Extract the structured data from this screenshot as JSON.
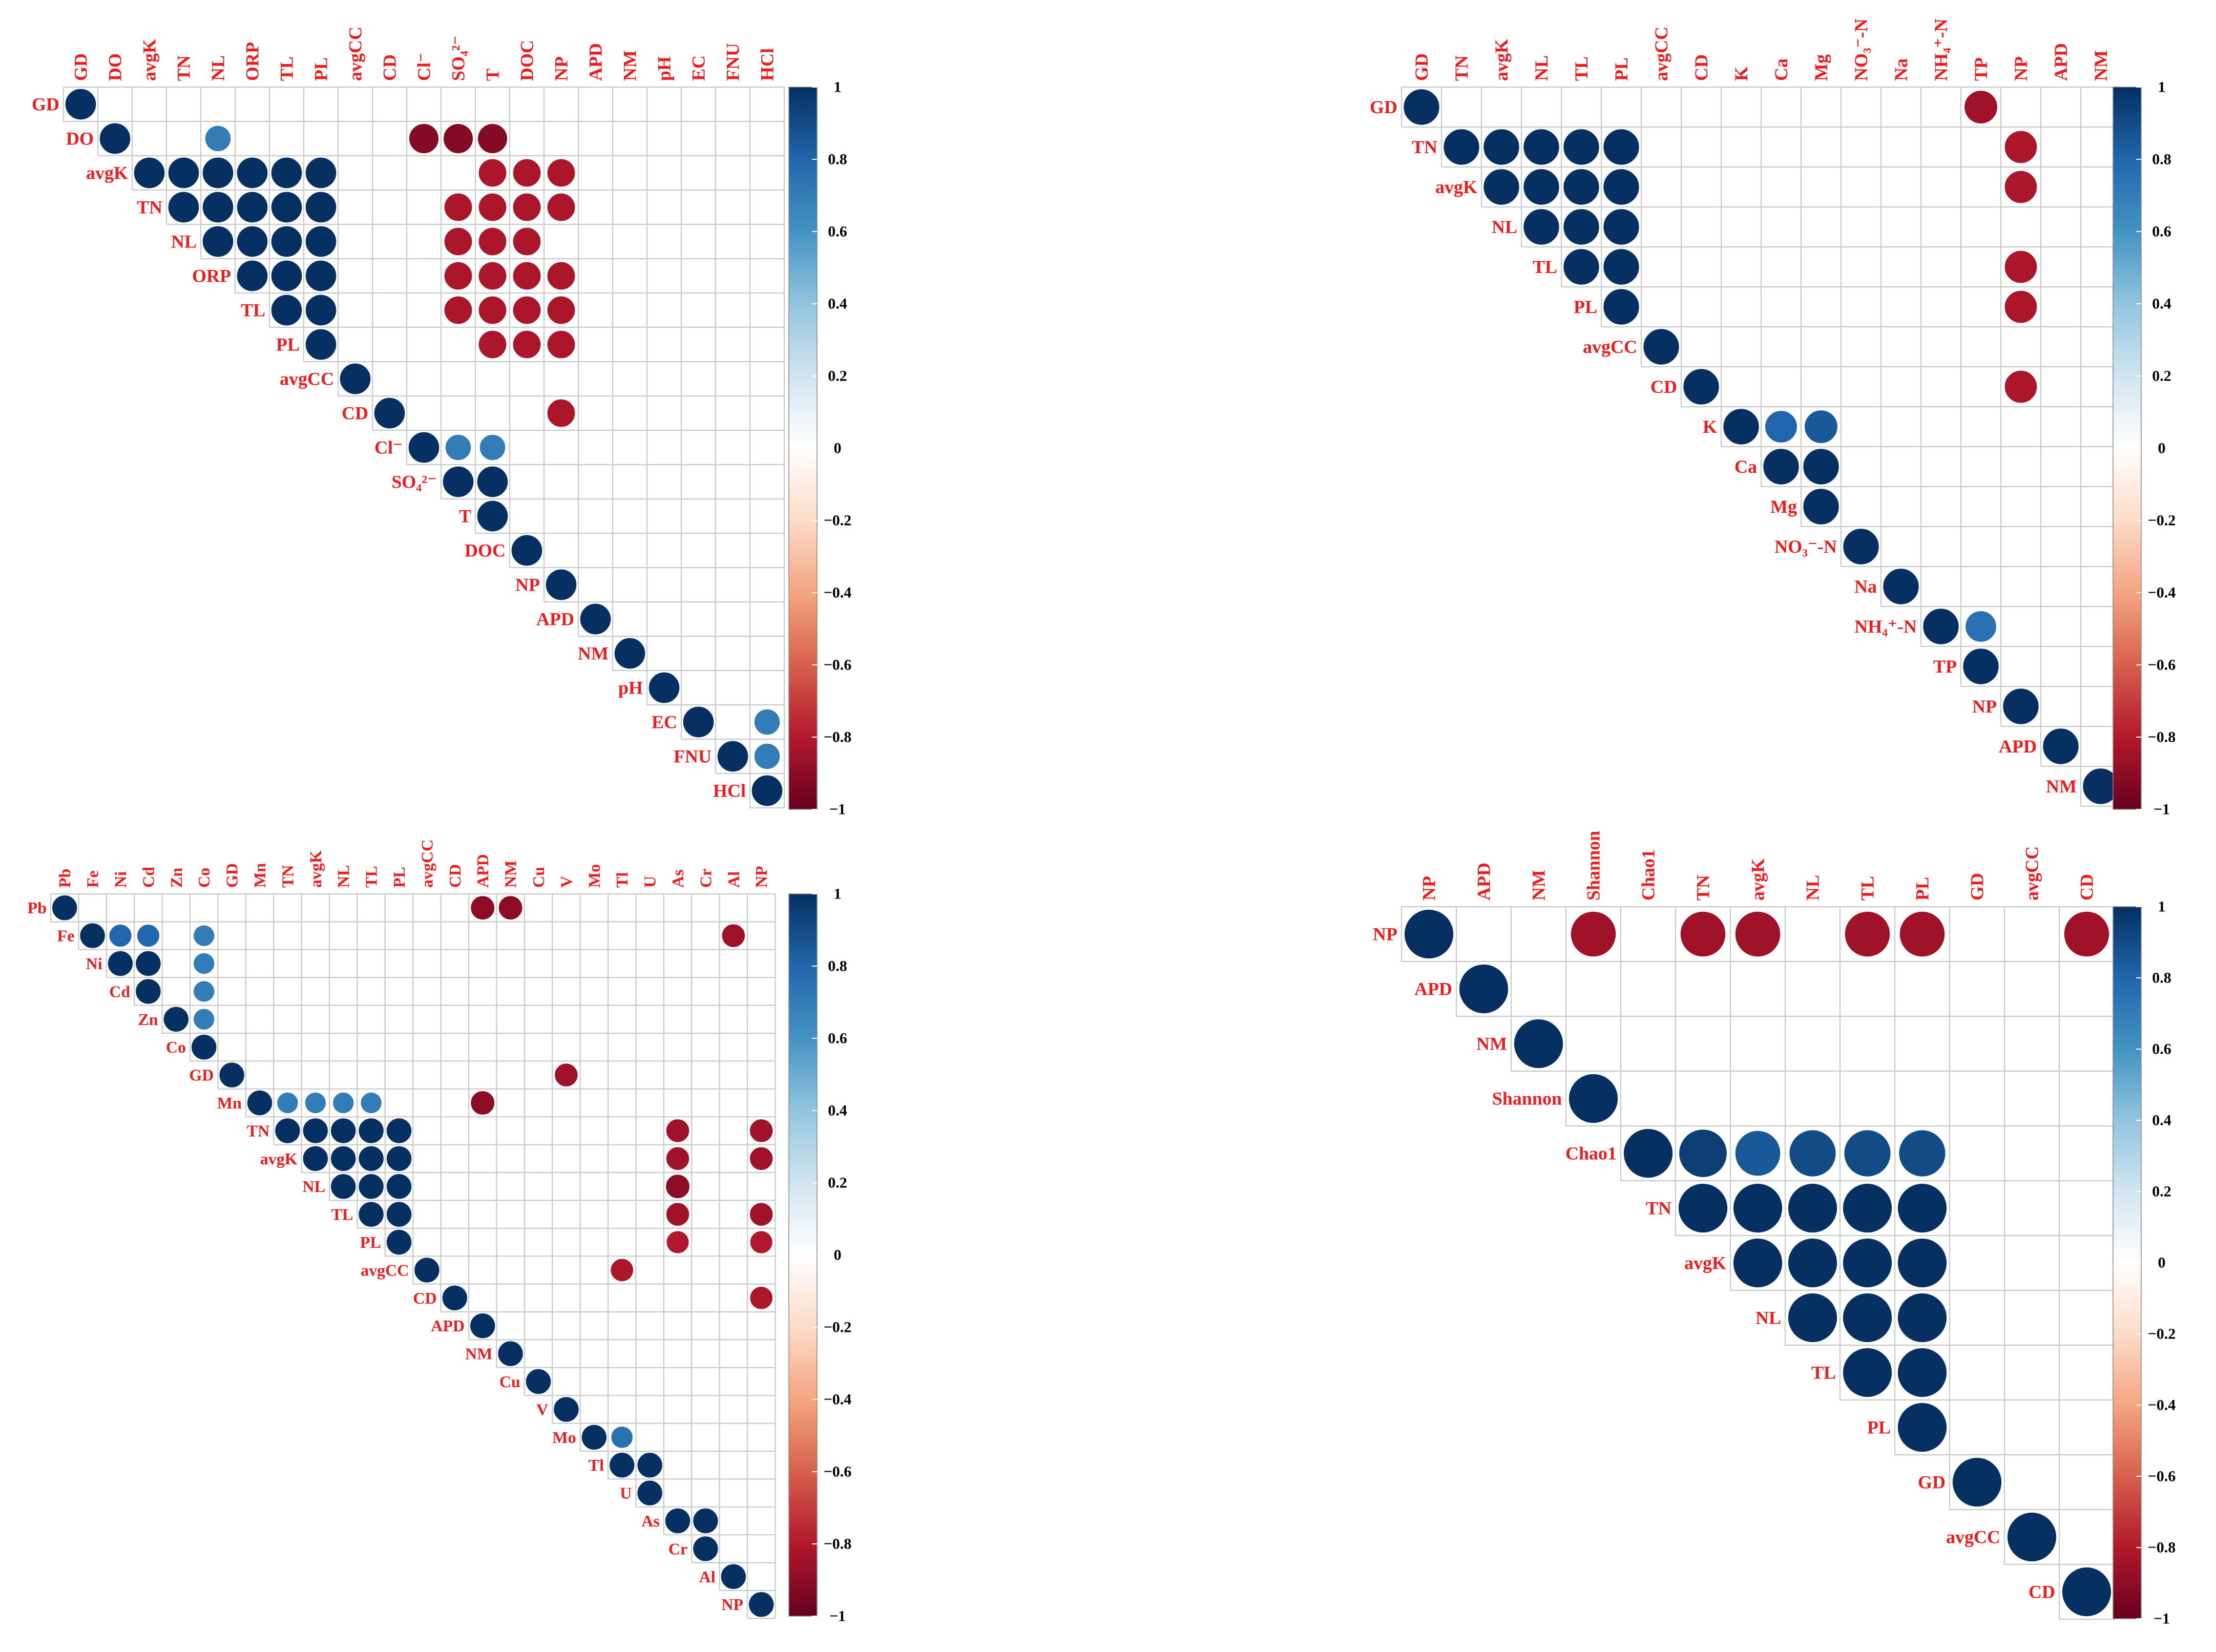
{
  "colorbar": {
    "ticks": [
      "1",
      "0.8",
      "0.6",
      "0.4",
      "0.2",
      "0",
      "−0.2",
      "−0.4",
      "−0.6",
      "−0.8",
      "−1"
    ],
    "stops": [
      {
        "v": -1.0,
        "c": "#67001f"
      },
      {
        "v": -0.8,
        "c": "#b2182b"
      },
      {
        "v": -0.6,
        "c": "#d6604d"
      },
      {
        "v": -0.4,
        "c": "#f4a582"
      },
      {
        "v": -0.2,
        "c": "#fddbc7"
      },
      {
        "v": 0.0,
        "c": "#ffffff"
      },
      {
        "v": 0.2,
        "c": "#d1e5f0"
      },
      {
        "v": 0.4,
        "c": "#92c5de"
      },
      {
        "v": 0.6,
        "c": "#4393c3"
      },
      {
        "v": 0.8,
        "c": "#2166ac"
      },
      {
        "v": 1.0,
        "c": "#053061"
      }
    ]
  },
  "colors": {
    "label": "#ee1c1c",
    "grid": "#c9c9c9",
    "circle_edge": "#ffffff"
  },
  "chart_data": [
    {
      "type": "heatmap",
      "title": "",
      "subtype": "correlation-upper-triangle-circles",
      "variables": [
        "GD",
        "DO",
        "avgK",
        "TN",
        "NL",
        "ORP",
        "TL",
        "PL",
        "avgCC",
        "CD",
        "Cl⁻",
        "SO₄²⁻",
        "T",
        "DOC",
        "NP",
        "APD",
        "NM",
        "pH",
        "EC",
        "FNU",
        "HCl"
      ],
      "cells": [
        [
          0,
          0,
          1
        ],
        [
          1,
          1,
          1
        ],
        [
          1,
          4,
          0.7
        ],
        [
          1,
          10,
          -0.92
        ],
        [
          1,
          11,
          -0.92
        ],
        [
          1,
          12,
          -0.92
        ],
        [
          2,
          2,
          1
        ],
        [
          2,
          3,
          1
        ],
        [
          2,
          4,
          1
        ],
        [
          2,
          5,
          1
        ],
        [
          2,
          6,
          1
        ],
        [
          2,
          7,
          1
        ],
        [
          2,
          12,
          -0.82
        ],
        [
          2,
          13,
          -0.82
        ],
        [
          2,
          14,
          -0.82
        ],
        [
          3,
          3,
          1
        ],
        [
          3,
          4,
          1
        ],
        [
          3,
          5,
          1
        ],
        [
          3,
          6,
          1
        ],
        [
          3,
          7,
          1
        ],
        [
          3,
          11,
          -0.82
        ],
        [
          3,
          12,
          -0.82
        ],
        [
          3,
          13,
          -0.82
        ],
        [
          3,
          14,
          -0.82
        ],
        [
          4,
          4,
          1
        ],
        [
          4,
          5,
          1
        ],
        [
          4,
          6,
          1
        ],
        [
          4,
          7,
          1
        ],
        [
          4,
          11,
          -0.82
        ],
        [
          4,
          12,
          -0.82
        ],
        [
          4,
          13,
          -0.82
        ],
        [
          5,
          5,
          1
        ],
        [
          5,
          6,
          1
        ],
        [
          5,
          7,
          1
        ],
        [
          5,
          11,
          -0.82
        ],
        [
          5,
          12,
          -0.82
        ],
        [
          5,
          13,
          -0.82
        ],
        [
          5,
          14,
          -0.82
        ],
        [
          6,
          6,
          1
        ],
        [
          6,
          7,
          1
        ],
        [
          6,
          11,
          -0.82
        ],
        [
          6,
          12,
          -0.82
        ],
        [
          6,
          13,
          -0.82
        ],
        [
          6,
          14,
          -0.82
        ],
        [
          7,
          7,
          1
        ],
        [
          7,
          12,
          -0.82
        ],
        [
          7,
          13,
          -0.82
        ],
        [
          7,
          14,
          -0.82
        ],
        [
          8,
          8,
          1
        ],
        [
          9,
          9,
          1
        ],
        [
          9,
          14,
          -0.82
        ],
        [
          10,
          10,
          1
        ],
        [
          10,
          11,
          0.7
        ],
        [
          10,
          12,
          0.7
        ],
        [
          11,
          11,
          1
        ],
        [
          11,
          12,
          1
        ],
        [
          12,
          12,
          1
        ],
        [
          13,
          13,
          1
        ],
        [
          14,
          14,
          1
        ],
        [
          15,
          15,
          1
        ],
        [
          16,
          16,
          1
        ],
        [
          17,
          17,
          1
        ],
        [
          18,
          18,
          1
        ],
        [
          18,
          20,
          0.7
        ],
        [
          19,
          19,
          1
        ],
        [
          19,
          20,
          0.7
        ],
        [
          20,
          20,
          1
        ]
      ]
    },
    {
      "type": "heatmap",
      "title": "",
      "subtype": "correlation-upper-triangle-circles",
      "variables": [
        "GD",
        "TN",
        "avgK",
        "NL",
        "TL",
        "PL",
        "avgCC",
        "CD",
        "K",
        "Ca",
        "Mg",
        "NO₃⁻-N",
        "Na",
        "NH₄⁺-N",
        "TP",
        "NP",
        "APD",
        "NM"
      ],
      "cells": [
        [
          0,
          0,
          1
        ],
        [
          0,
          14,
          -0.85
        ],
        [
          1,
          1,
          1
        ],
        [
          1,
          2,
          1
        ],
        [
          1,
          3,
          1
        ],
        [
          1,
          4,
          1
        ],
        [
          1,
          5,
          1
        ],
        [
          1,
          15,
          -0.82
        ],
        [
          2,
          2,
          1
        ],
        [
          2,
          3,
          1
        ],
        [
          2,
          4,
          1
        ],
        [
          2,
          5,
          1
        ],
        [
          2,
          15,
          -0.82
        ],
        [
          3,
          3,
          1
        ],
        [
          3,
          4,
          1
        ],
        [
          3,
          5,
          1
        ],
        [
          4,
          4,
          1
        ],
        [
          4,
          5,
          1
        ],
        [
          4,
          15,
          -0.82
        ],
        [
          5,
          5,
          1
        ],
        [
          5,
          15,
          -0.82
        ],
        [
          6,
          6,
          1
        ],
        [
          7,
          7,
          1
        ],
        [
          7,
          15,
          -0.82
        ],
        [
          8,
          8,
          1
        ],
        [
          8,
          9,
          0.8
        ],
        [
          8,
          10,
          0.85
        ],
        [
          9,
          9,
          1
        ],
        [
          9,
          10,
          1
        ],
        [
          10,
          10,
          1
        ],
        [
          11,
          11,
          1
        ],
        [
          12,
          12,
          1
        ],
        [
          13,
          13,
          1
        ],
        [
          13,
          14,
          0.75
        ],
        [
          14,
          14,
          1
        ],
        [
          15,
          15,
          1
        ],
        [
          16,
          16,
          1
        ],
        [
          17,
          17,
          1
        ]
      ]
    },
    {
      "type": "heatmap",
      "title": "",
      "subtype": "correlation-upper-triangle-circles",
      "variables": [
        "Pb",
        "Fe",
        "Ni",
        "Cd",
        "Zn",
        "Co",
        "GD",
        "Mn",
        "TN",
        "avgK",
        "NL",
        "TL",
        "PL",
        "avgCC",
        "CD",
        "APD",
        "NM",
        "Cu",
        "V",
        "Mo",
        "Tl",
        "U",
        "As",
        "Cr",
        "Al",
        "NP"
      ],
      "cells": [
        [
          0,
          0,
          1
        ],
        [
          0,
          15,
          -0.9
        ],
        [
          0,
          16,
          -0.9
        ],
        [
          1,
          1,
          1
        ],
        [
          1,
          2,
          0.8
        ],
        [
          1,
          3,
          0.8
        ],
        [
          1,
          5,
          0.7
        ],
        [
          1,
          24,
          -0.85
        ],
        [
          2,
          2,
          1
        ],
        [
          2,
          3,
          1
        ],
        [
          2,
          5,
          0.7
        ],
        [
          3,
          3,
          1
        ],
        [
          3,
          5,
          0.7
        ],
        [
          4,
          4,
          1
        ],
        [
          4,
          5,
          0.7
        ],
        [
          5,
          5,
          1
        ],
        [
          6,
          6,
          1
        ],
        [
          6,
          18,
          -0.85
        ],
        [
          7,
          7,
          1
        ],
        [
          7,
          8,
          0.7
        ],
        [
          7,
          9,
          0.7
        ],
        [
          7,
          10,
          0.7
        ],
        [
          7,
          11,
          0.7
        ],
        [
          7,
          15,
          -0.9
        ],
        [
          8,
          8,
          1
        ],
        [
          8,
          9,
          1
        ],
        [
          8,
          10,
          1
        ],
        [
          8,
          11,
          1
        ],
        [
          8,
          12,
          1
        ],
        [
          8,
          22,
          -0.85
        ],
        [
          8,
          25,
          -0.85
        ],
        [
          9,
          9,
          1
        ],
        [
          9,
          10,
          1
        ],
        [
          9,
          11,
          1
        ],
        [
          9,
          12,
          1
        ],
        [
          9,
          22,
          -0.85
        ],
        [
          9,
          25,
          -0.85
        ],
        [
          10,
          10,
          1
        ],
        [
          10,
          11,
          1
        ],
        [
          10,
          12,
          1
        ],
        [
          10,
          22,
          -0.9
        ],
        [
          11,
          11,
          1
        ],
        [
          11,
          12,
          1
        ],
        [
          11,
          22,
          -0.85
        ],
        [
          11,
          25,
          -0.85
        ],
        [
          12,
          12,
          1
        ],
        [
          12,
          22,
          -0.8
        ],
        [
          12,
          25,
          -0.8
        ],
        [
          13,
          13,
          1
        ],
        [
          13,
          20,
          -0.82
        ],
        [
          14,
          14,
          1
        ],
        [
          14,
          25,
          -0.82
        ],
        [
          15,
          15,
          1
        ],
        [
          16,
          16,
          1
        ],
        [
          17,
          17,
          1
        ],
        [
          18,
          18,
          1
        ],
        [
          19,
          19,
          1
        ],
        [
          19,
          20,
          0.75
        ],
        [
          20,
          20,
          1
        ],
        [
          20,
          21,
          1
        ],
        [
          21,
          21,
          1
        ],
        [
          22,
          22,
          1
        ],
        [
          22,
          23,
          1
        ],
        [
          23,
          23,
          1
        ],
        [
          24,
          24,
          1
        ],
        [
          25,
          25,
          1
        ]
      ]
    },
    {
      "type": "heatmap",
      "title": "",
      "subtype": "correlation-upper-triangle-circles",
      "variables": [
        "NP",
        "APD",
        "NM",
        "Shannon",
        "Chao1",
        "TN",
        "avgK",
        "NL",
        "TL",
        "PL",
        "GD",
        "avgCC",
        "CD"
      ],
      "cells": [
        [
          0,
          0,
          1
        ],
        [
          0,
          3,
          -0.85
        ],
        [
          0,
          5,
          -0.85
        ],
        [
          0,
          6,
          -0.85
        ],
        [
          0,
          8,
          -0.85
        ],
        [
          0,
          9,
          -0.85
        ],
        [
          0,
          12,
          -0.85
        ],
        [
          1,
          1,
          1
        ],
        [
          2,
          2,
          1
        ],
        [
          3,
          3,
          1
        ],
        [
          4,
          4,
          1
        ],
        [
          4,
          5,
          0.95
        ],
        [
          4,
          6,
          0.85
        ],
        [
          4,
          7,
          0.9
        ],
        [
          4,
          8,
          0.9
        ],
        [
          4,
          9,
          0.9
        ],
        [
          5,
          5,
          1
        ],
        [
          5,
          6,
          1
        ],
        [
          5,
          7,
          1
        ],
        [
          5,
          8,
          1
        ],
        [
          5,
          9,
          1
        ],
        [
          6,
          6,
          1
        ],
        [
          6,
          7,
          1
        ],
        [
          6,
          8,
          1
        ],
        [
          6,
          9,
          1
        ],
        [
          7,
          7,
          1
        ],
        [
          7,
          8,
          1
        ],
        [
          7,
          9,
          1
        ],
        [
          8,
          8,
          1
        ],
        [
          8,
          9,
          1
        ],
        [
          9,
          9,
          1
        ],
        [
          10,
          10,
          1
        ],
        [
          11,
          11,
          1
        ],
        [
          12,
          12,
          1
        ]
      ]
    }
  ]
}
